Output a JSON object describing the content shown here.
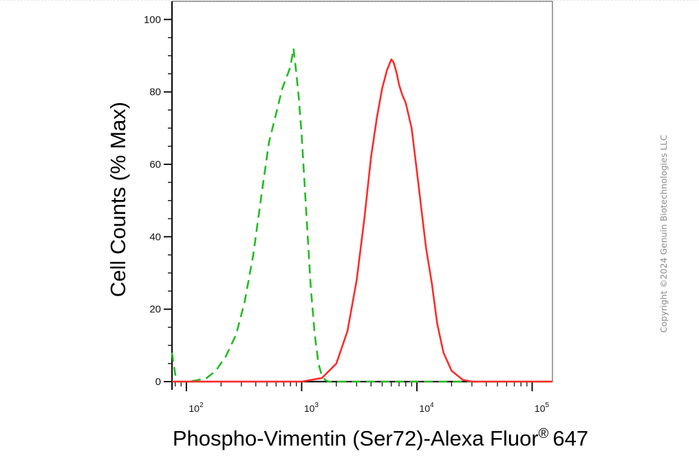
{
  "chart_data": {
    "type": "line",
    "ylabel": "Cell Counts (% Max)",
    "xlabel": "Phospho-Vimentin (Ser72)-Alexa Fluor",
    "xlabel_superscript": "®",
    "xlabel_suffix": "647",
    "x_scale": "log",
    "xlim": [
      75,
      150000
    ],
    "ylim": [
      0,
      105
    ],
    "y_ticks": [
      0,
      20,
      40,
      60,
      80,
      100
    ],
    "y_tick_labels": [
      "0",
      "20",
      "40",
      "60",
      "80",
      "100"
    ],
    "x_ticks": [
      100,
      1000,
      10000,
      100000
    ],
    "x_tick_labels": [
      {
        "base": "10",
        "exp": "2"
      },
      {
        "base": "10",
        "exp": "3"
      },
      {
        "base": "10",
        "exp": "4"
      },
      {
        "base": "10",
        "exp": "5"
      }
    ],
    "grid": false,
    "legend": "none",
    "series": [
      {
        "color": "#22bb22",
        "style": "dashed",
        "x": [
          75,
          80,
          85,
          100,
          120,
          150,
          180,
          220,
          270,
          320,
          380,
          450,
          520,
          600,
          680,
          740,
          800,
          850,
          900,
          940,
          1000,
          1100,
          1200,
          1300,
          1400,
          1500,
          1600,
          1700,
          2000,
          3000,
          5000,
          10000,
          30000,
          150000
        ],
        "y": [
          8,
          2,
          0,
          0,
          0.3,
          1,
          3,
          7,
          13,
          22,
          35,
          52,
          66,
          74,
          81,
          84,
          87,
          92,
          85,
          79,
          68,
          46,
          26,
          13,
          5,
          1.5,
          0.5,
          0,
          0,
          0,
          0,
          0,
          0,
          0
        ]
      },
      {
        "color": "#ff2a2a",
        "style": "solid",
        "x": [
          75,
          1000,
          1500,
          2000,
          2500,
          3000,
          3500,
          4000,
          4500,
          5000,
          5500,
          6000,
          6300,
          6700,
          7000,
          7500,
          8000,
          9000,
          10000,
          11000,
          12000,
          13500,
          15000,
          17000,
          20000,
          25000,
          30000,
          50000,
          150000
        ],
        "y": [
          0,
          0,
          1,
          5,
          14,
          28,
          45,
          62,
          73,
          81,
          86,
          89,
          88,
          85,
          82,
          79,
          77,
          70,
          58,
          47,
          37,
          27,
          16,
          8,
          3,
          0.5,
          0,
          0,
          0
        ]
      }
    ]
  },
  "watermark": "Copyright ©2024 Genuin Biotechnologies LLC"
}
